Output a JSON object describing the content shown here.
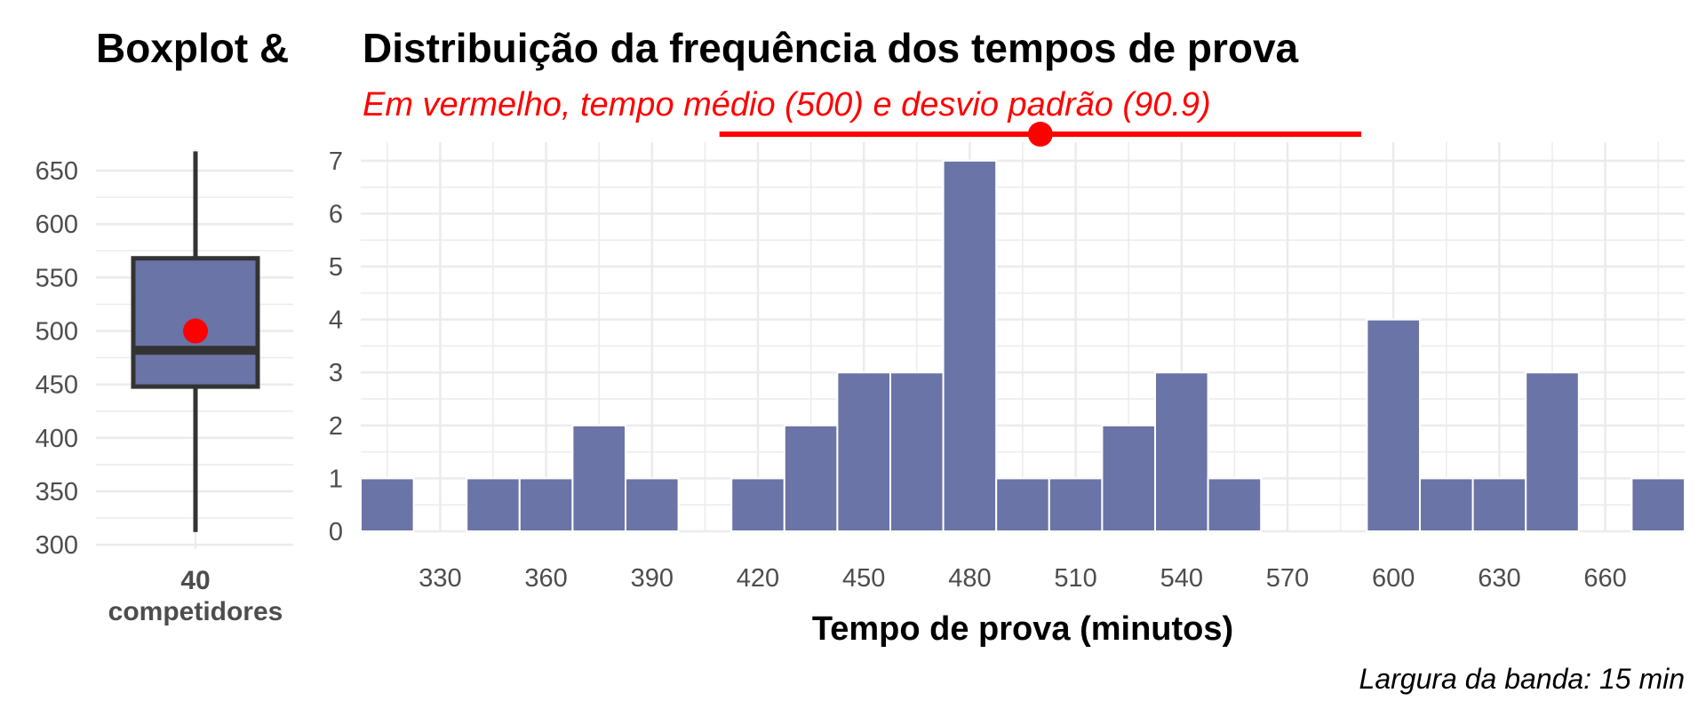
{
  "colors": {
    "bar_fill": "#6b74a6",
    "bar_stroke": "#ffffff",
    "highlight": "#ff0000",
    "box_stroke": "#333333",
    "grid": "#ebebeb"
  },
  "boxplot": {
    "title": "Boxplot &",
    "label_line1": "40",
    "label_line2": "competidores"
  },
  "chart_data": [
    {
      "type": "boxplot",
      "title": "Boxplot &",
      "n": 40,
      "y_ticks": [
        300,
        350,
        400,
        450,
        500,
        550,
        600,
        650
      ],
      "ylim": [
        296,
        670
      ],
      "whisker_low": 312,
      "q1": 448,
      "median": 482,
      "q3": 568,
      "whisker_high": 668,
      "mean": 500,
      "xlabel_line1": "40",
      "xlabel_line2": "competidores"
    },
    {
      "type": "bar",
      "subtype": "histogram",
      "title": "Distribuição da frequência dos tempos de prova",
      "subtitle": "Em vermelho, tempo médio (500) e desvio padrão (90.9)",
      "xlabel": "Tempo de prova (minutos)",
      "ylabel": "",
      "caption": "Largura da banda: 15 min",
      "bin_width": 15,
      "bin_start": 307.5,
      "counts": [
        1,
        0,
        1,
        1,
        2,
        1,
        0,
        1,
        2,
        3,
        3,
        7,
        1,
        1,
        2,
        3,
        1,
        0,
        0,
        4,
        1,
        1,
        3,
        0,
        1
      ],
      "x_ticks": [
        330,
        360,
        390,
        420,
        450,
        480,
        510,
        540,
        570,
        600,
        630,
        660
      ],
      "y_ticks": [
        0,
        1,
        2,
        3,
        4,
        5,
        6,
        7
      ],
      "xlim": [
        307.5,
        682.5
      ],
      "ylim": [
        0,
        7.35
      ],
      "grid": true,
      "mean": 500,
      "sd": 90.9,
      "mean_marker_y": 7.5
    }
  ]
}
